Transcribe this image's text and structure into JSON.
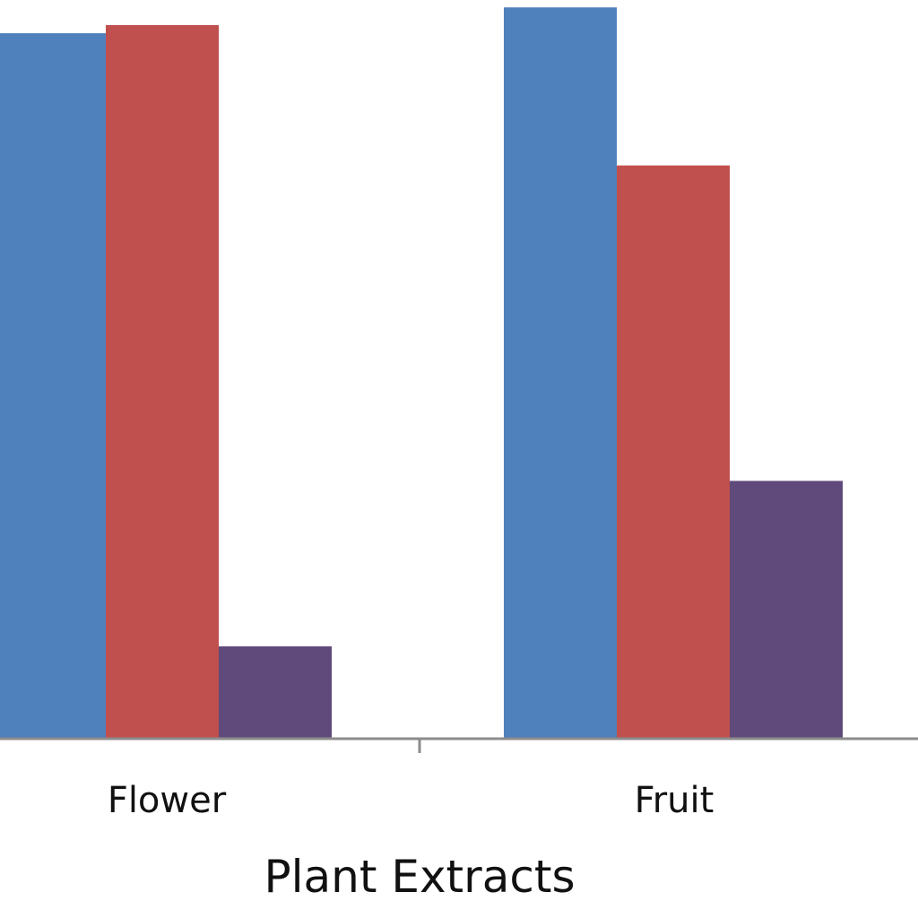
{
  "chart_data": {
    "type": "bar",
    "xlabel": "Plant Extracts",
    "categories": [
      "Flower",
      "Fruit"
    ],
    "series": [
      {
        "color": "#4f81bd",
        "values": [
          95.5,
          99.0
        ]
      },
      {
        "color": "#c0504d",
        "values": [
          96.6,
          77.6
        ]
      },
      {
        "color": "#604a7b",
        "values": [
          12.5,
          34.9
        ]
      }
    ],
    "ylim": [
      0,
      100
    ],
    "grid": false,
    "legend": "none"
  }
}
